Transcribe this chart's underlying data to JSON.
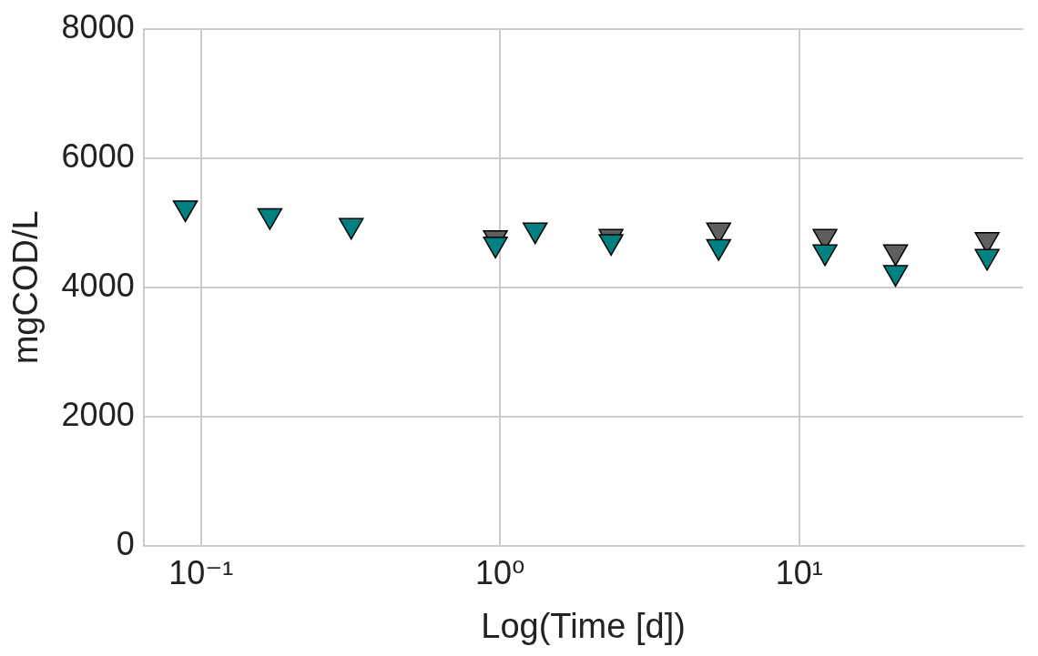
{
  "chart_data": {
    "type": "scatter",
    "xlabel": "Log(Time [d])",
    "ylabel": "mgCOD/L",
    "log": "x",
    "grid": true,
    "legend": false,
    "marker": "triangle",
    "xlim": [
      0.0643,
      56
    ],
    "xticks": [
      {
        "value": 0.1,
        "label": "10⁻¹"
      },
      {
        "value": 1,
        "label": "10⁰"
      },
      {
        "value": 10,
        "label": "10¹"
      }
    ],
    "ylim": [
      0,
      8000
    ],
    "yticks": [
      0,
      2000,
      4000,
      6000,
      8000
    ],
    "x": [
      0.0887,
      0.17,
      0.318,
      0.965,
      1.31,
      2.35,
      5.38,
      12.2,
      21.0,
      42.5
    ],
    "series": [
      {
        "color": "#5f5f5f",
        "values": [
          null,
          null,
          null,
          4770,
          null,
          4790,
          4890,
          4790,
          4550,
          4740
        ]
      },
      {
        "color": "#008080",
        "values": [
          5230,
          5110,
          4960,
          4670,
          4890,
          4710,
          4630,
          4550,
          4230,
          4480
        ]
      }
    ]
  }
}
